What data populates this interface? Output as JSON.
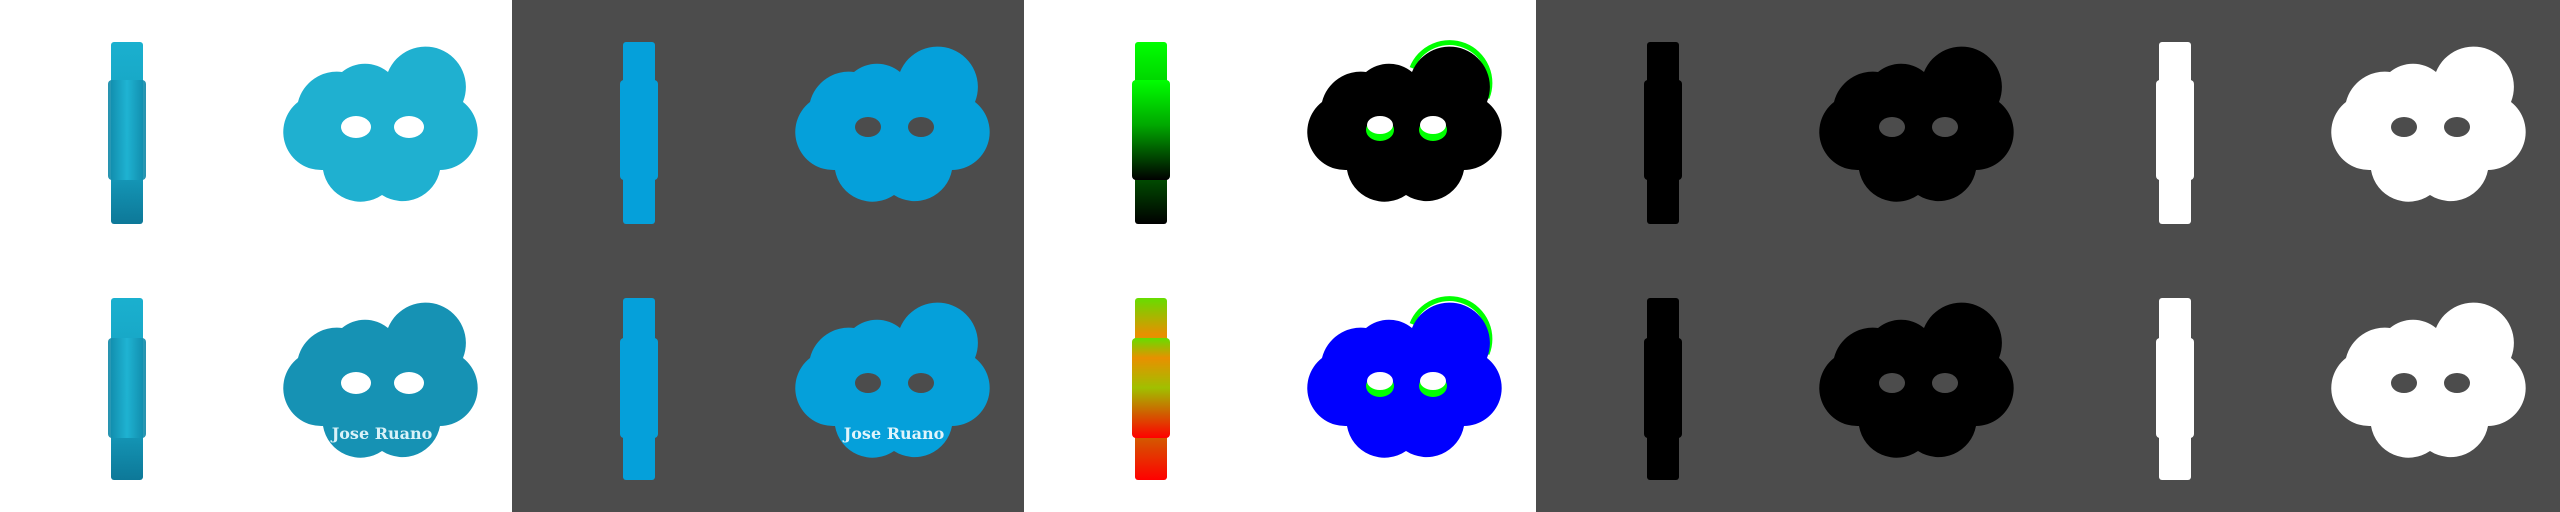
{
  "engraving_text": "Jose Ruano",
  "colors": {
    "white_bg": "#ffffff",
    "gray_bg": "#4c4c4c",
    "teal": "#18a8c8",
    "teal_dark": "#1390ad",
    "blue": "#05a0da",
    "normal_blue": "#0000ff",
    "normal_green": "#00ff00",
    "normal_red": "#ff0000",
    "black": "#000000",
    "white": "#ffffff"
  },
  "panels": [
    {
      "id": "render",
      "background": "white",
      "style": "teal"
    },
    {
      "id": "flat",
      "background": "gray",
      "style": "blue"
    },
    {
      "id": "normals",
      "background": "white",
      "style": "normal"
    },
    {
      "id": "mask-black",
      "background": "gray",
      "style": "black"
    },
    {
      "id": "mask-white",
      "background": "gray",
      "style": "white"
    }
  ]
}
